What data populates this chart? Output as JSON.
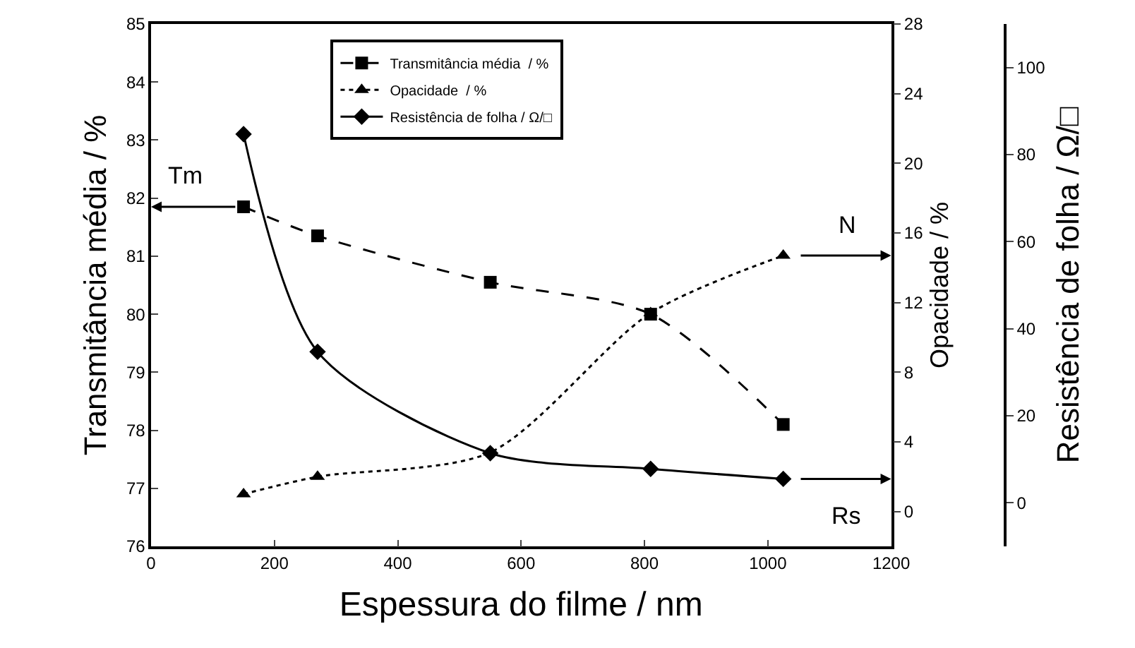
{
  "chart_data": {
    "type": "line",
    "xlabel": "Espessura do filme / nm",
    "ylabel": "Transmitância média / %",
    "y2label": "Opacidade / %",
    "y3label": "Resistência de folha / Ω/□",
    "x": [
      150,
      270,
      550,
      810,
      1025
    ],
    "xlim": [
      0,
      1200
    ],
    "xticks": [
      0,
      200,
      400,
      600,
      800,
      1000,
      1200
    ],
    "ylim": [
      76,
      85
    ],
    "yticks": [
      76,
      77,
      78,
      79,
      80,
      81,
      82,
      83,
      84,
      85
    ],
    "y2lim": [
      -2,
      28
    ],
    "y2ticks": [
      0,
      4,
      8,
      12,
      16,
      20,
      24,
      28
    ],
    "y3lim": [
      -10,
      110
    ],
    "y3ticks": [
      0,
      20,
      40,
      60,
      80,
      100
    ],
    "series": [
      {
        "name": "Transmitância média  / %",
        "color": "#000000",
        "values": [
          81.85,
          81.35,
          80.55,
          80.0,
          78.1
        ],
        "marker": "square",
        "line_style": "dashed"
      },
      {
        "name": "Opacidade  / %",
        "color": "#000000",
        "values": [
          1.0,
          2.0,
          3.4,
          11.4,
          14.7
        ],
        "marker": "triangle",
        "line_style": "dotted",
        "axis": "y2"
      },
      {
        "name": "Resistência de folha / Ω/□",
        "color": "#000000",
        "values": [
          84.7,
          34.7,
          11.4,
          7.8,
          5.5
        ],
        "marker": "diamond",
        "line_style": "solid",
        "axis": "y3"
      }
    ],
    "annotations": [
      "Tm",
      "N",
      "Rs"
    ],
    "legend": "top",
    "grid": false
  }
}
